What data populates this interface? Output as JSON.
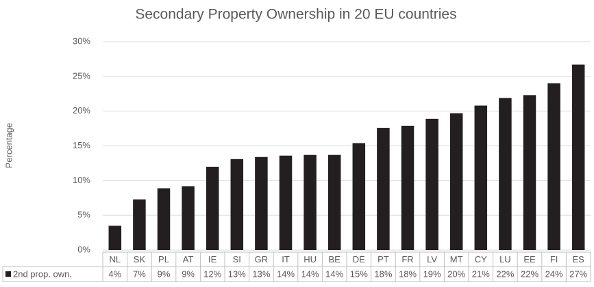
{
  "chart_data": {
    "type": "bar",
    "title": "Secondary Property Ownership in 20 EU countries",
    "y_axis_label": "Percentage",
    "categories": [
      "NL",
      "SK",
      "PL",
      "AT",
      "IE",
      "SI",
      "GR",
      "IT",
      "HU",
      "BE",
      "DE",
      "PT",
      "FR",
      "LV",
      "MT",
      "CY",
      "LU",
      "EE",
      "FI",
      "ES"
    ],
    "series": [
      {
        "name": "2nd prop. own.",
        "color": "#231f20",
        "values": [
          3.5,
          7.3,
          8.9,
          9.2,
          12.0,
          13.1,
          13.4,
          13.6,
          13.7,
          13.7,
          15.4,
          17.6,
          17.9,
          18.9,
          19.7,
          20.8,
          21.9,
          22.3,
          24.0,
          26.7
        ],
        "value_labels": [
          "4%",
          "7%",
          "9%",
          "9%",
          "12%",
          "13%",
          "13%",
          "14%",
          "14%",
          "14%",
          "15%",
          "18%",
          "18%",
          "19%",
          "20%",
          "21%",
          "22%",
          "22%",
          "24%",
          "27%"
        ]
      }
    ],
    "ylim": [
      0,
      30
    ],
    "yticks": [
      {
        "value": 0,
        "label": "0%"
      },
      {
        "value": 5,
        "label": "5%"
      },
      {
        "value": 10,
        "label": "10%"
      },
      {
        "value": 15,
        "label": "15%"
      },
      {
        "value": 20,
        "label": "20%"
      },
      {
        "value": 25,
        "label": "25%"
      },
      {
        "value": 30,
        "label": "30%"
      }
    ],
    "grid": true
  }
}
